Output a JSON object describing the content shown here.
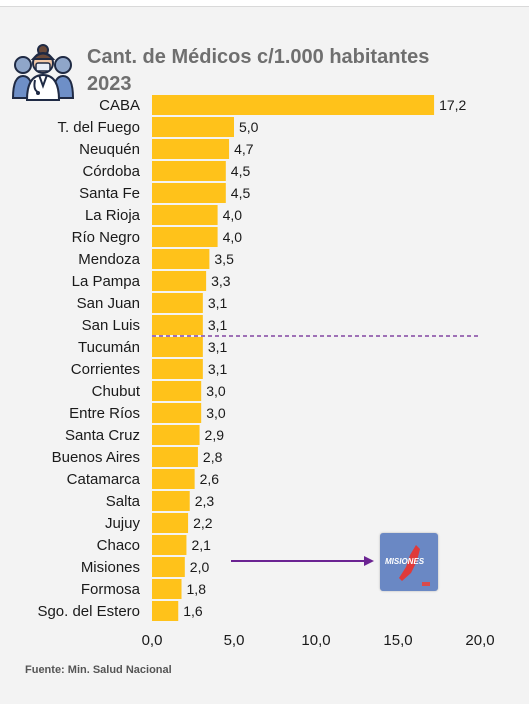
{
  "title_line1": "Cant. de Médicos c/1.000 habitantes",
  "title_line2": "2023",
  "source": "Fuente: Min. Salud Nacional",
  "logo_text": "MISIONES",
  "colors": {
    "bar": "#ffc21a",
    "highlight_arrow": "#6b2392",
    "divider": "#6b2392",
    "title": "#6f6f6f"
  },
  "icons": [
    "doctor-group-icon",
    "misiones-logo-icon"
  ],
  "chart_data": {
    "type": "bar",
    "orientation": "horizontal",
    "categories": [
      "CABA",
      "T. del Fuego",
      "Neuquén",
      "Córdoba",
      "Santa Fe",
      "La Rioja",
      "Río Negro",
      "Mendoza",
      "La Pampa",
      "San Juan",
      "San Luis",
      "Tucumán",
      "Corrientes",
      "Chubut",
      "Entre Ríos",
      "Santa Cruz",
      "Buenos Aires",
      "Catamarca",
      "Salta",
      "Jujuy",
      "Chaco",
      "Misiones",
      "Formosa",
      "Sgo. del Estero"
    ],
    "values": [
      17.2,
      5.0,
      4.7,
      4.5,
      4.5,
      4.0,
      4.0,
      3.5,
      3.3,
      3.1,
      3.1,
      3.1,
      3.1,
      3.0,
      3.0,
      2.9,
      2.8,
      2.6,
      2.3,
      2.2,
      2.1,
      2.0,
      1.8,
      1.6
    ],
    "value_labels": [
      "17,2",
      "5,0",
      "4,7",
      "4,5",
      "4,5",
      "4,0",
      "4,0",
      "3,5",
      "3,3",
      "3,1",
      "3,1",
      "3,1",
      "3,1",
      "3,0",
      "3,0",
      "2,9",
      "2,8",
      "2,6",
      "2,3",
      "2,2",
      "2,1",
      "2,0",
      "1,8",
      "1,6"
    ],
    "xlim": [
      0,
      20
    ],
    "xticks": [
      "0,0",
      "5,0",
      "10,0",
      "15,0",
      "20,0"
    ],
    "grid": false,
    "divider_after": "San Luis",
    "highlight": "Misiones"
  }
}
